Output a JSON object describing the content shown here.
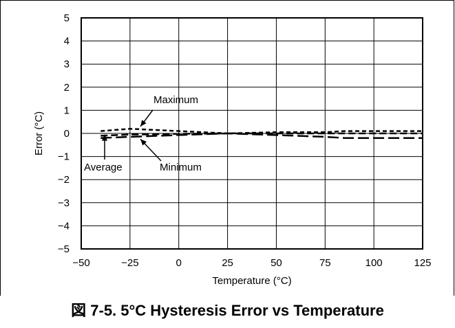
{
  "caption": "図 7-5. 5°C Hysteresis Error vs Temperature",
  "chart_data": {
    "type": "line",
    "xlabel": "Temperature (°C)",
    "ylabel": "Error (°C)",
    "xlim": [
      -50,
      125
    ],
    "ylim": [
      -5,
      5
    ],
    "xticks": [
      -50,
      -25,
      0,
      25,
      50,
      75,
      100,
      125
    ],
    "xtick_labels": [
      "−50",
      "−25",
      "0",
      "25",
      "50",
      "75",
      "100",
      "125"
    ],
    "yticks": [
      5,
      4,
      3,
      2,
      1,
      0,
      -1,
      -2,
      -3,
      -4,
      -5
    ],
    "ytick_labels": [
      "5",
      "4",
      "3",
      "2",
      "1",
      "0",
      "−1",
      "−2",
      "−3",
      "−4",
      "−5"
    ],
    "grid": true,
    "series": [
      {
        "name": "Maximum",
        "style": "short-dash",
        "x": [
          -40,
          -25,
          0,
          25,
          50,
          75,
          85,
          100,
          125
        ],
        "y": [
          0.1,
          0.2,
          0.1,
          0.0,
          0.05,
          0.05,
          0.1,
          0.1,
          0.1
        ]
      },
      {
        "name": "Average",
        "style": "dash",
        "x": [
          -40,
          -25,
          0,
          25,
          50,
          75,
          85,
          100,
          125
        ],
        "y": [
          -0.1,
          -0.05,
          -0.02,
          0.0,
          0.0,
          0.0,
          0.0,
          0.0,
          0.0
        ]
      },
      {
        "name": "Minimum",
        "style": "long-dash",
        "x": [
          -40,
          -25,
          0,
          25,
          50,
          75,
          85,
          100,
          125
        ],
        "y": [
          -0.2,
          -0.15,
          -0.07,
          0.0,
          -0.07,
          -0.15,
          -0.2,
          -0.2,
          -0.2
        ]
      }
    ],
    "annotations": [
      {
        "text": "Maximum",
        "series": "Maximum"
      },
      {
        "text": "Average",
        "series": "Average"
      },
      {
        "text": "Minimum",
        "series": "Minimum"
      }
    ]
  }
}
